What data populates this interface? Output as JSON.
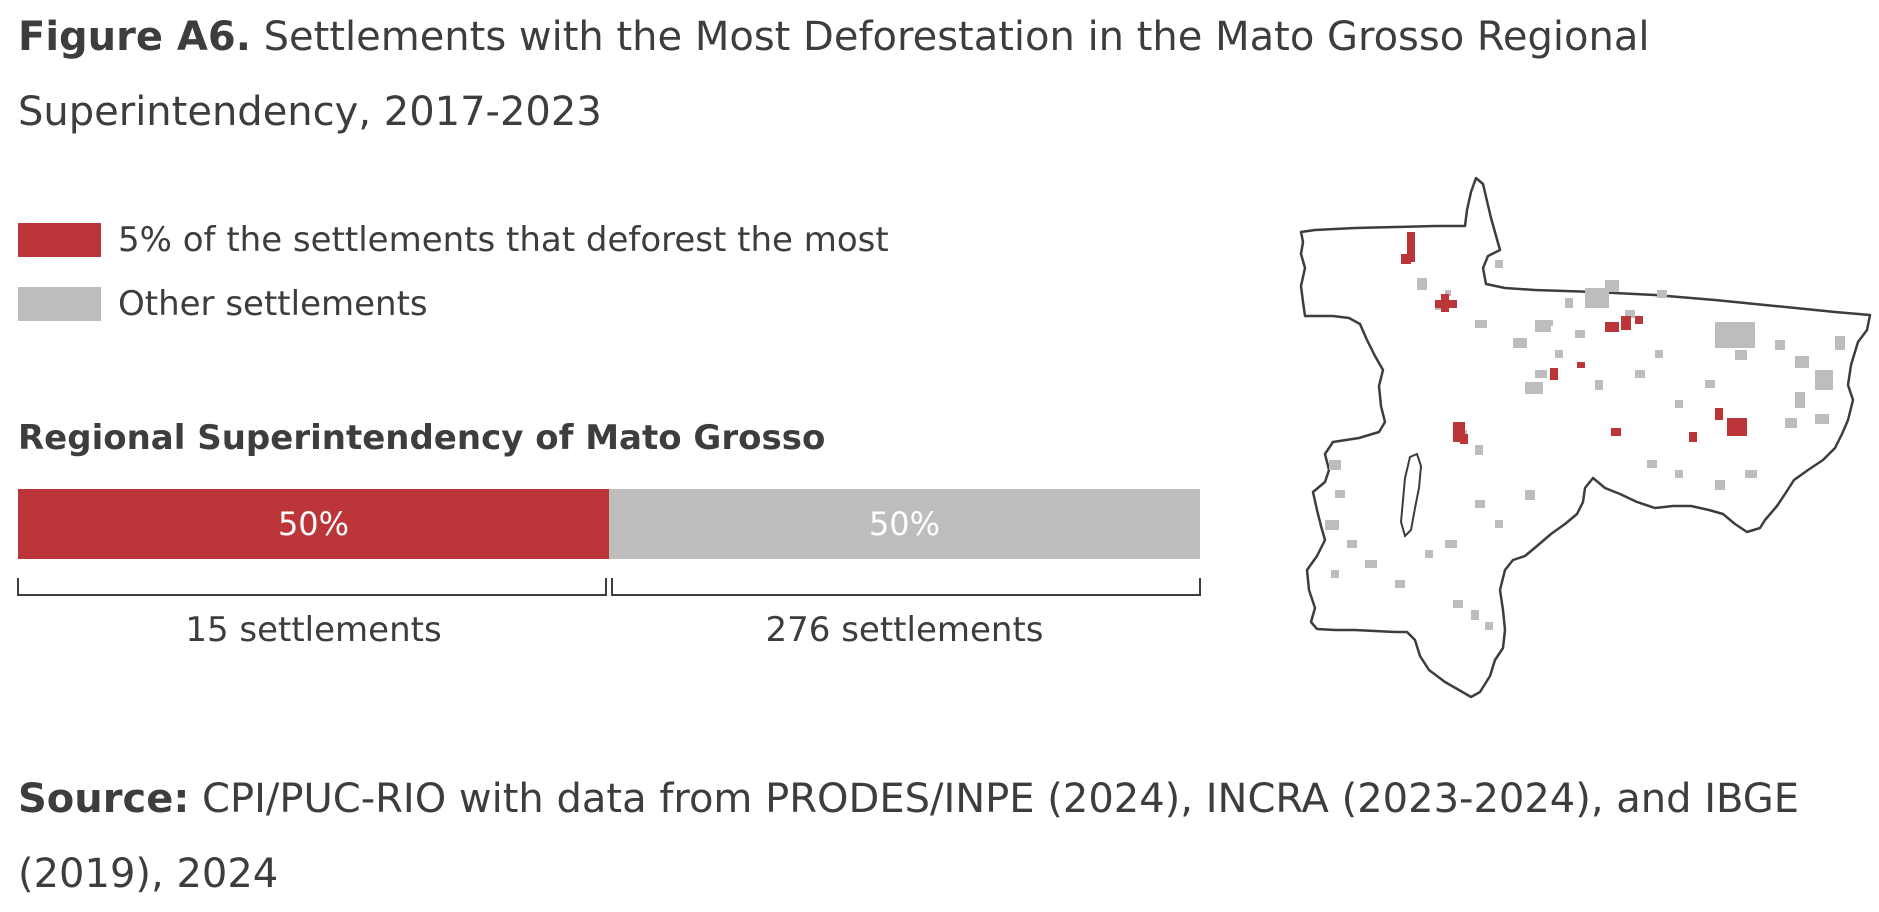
{
  "figure": {
    "label": "Figure A6.",
    "title": "Settlements with the Most Deforestation in the Mato Grosso Regional Superintendency, 2017-2023"
  },
  "legend": [
    {
      "label": "5% of the settlements that deforest the most",
      "color": "#bc3538"
    },
    {
      "label": "Other settlements",
      "color": "#bdbdbd"
    }
  ],
  "chart_data": {
    "type": "bar",
    "title": "Regional Superintendency of Mato Grosso",
    "orientation": "horizontal-stacked",
    "categories": [
      "Regional Superintendency of Mato Grosso"
    ],
    "series": [
      {
        "name": "5% of the settlements that deforest the most",
        "values": [
          50
        ],
        "value_label": "50%",
        "count_label": "15 settlements",
        "color": "#bc3538"
      },
      {
        "name": "Other settlements",
        "values": [
          50
        ],
        "value_label": "50%",
        "count_label": "276 settlements",
        "color": "#bdbdbd"
      }
    ],
    "xlim": [
      0,
      100
    ],
    "unit": "%"
  },
  "map": {
    "region": "Mato Grosso",
    "outline_color": "#3d3d3d",
    "settlement_colors": {
      "top": "#bc3538",
      "other": "#bdbdbd"
    }
  },
  "source": {
    "label": "Source:",
    "text": "CPI/PUC-RIO with data from PRODES/INPE (2024), INCRA (2023-2024), and IBGE (2019), 2024"
  }
}
